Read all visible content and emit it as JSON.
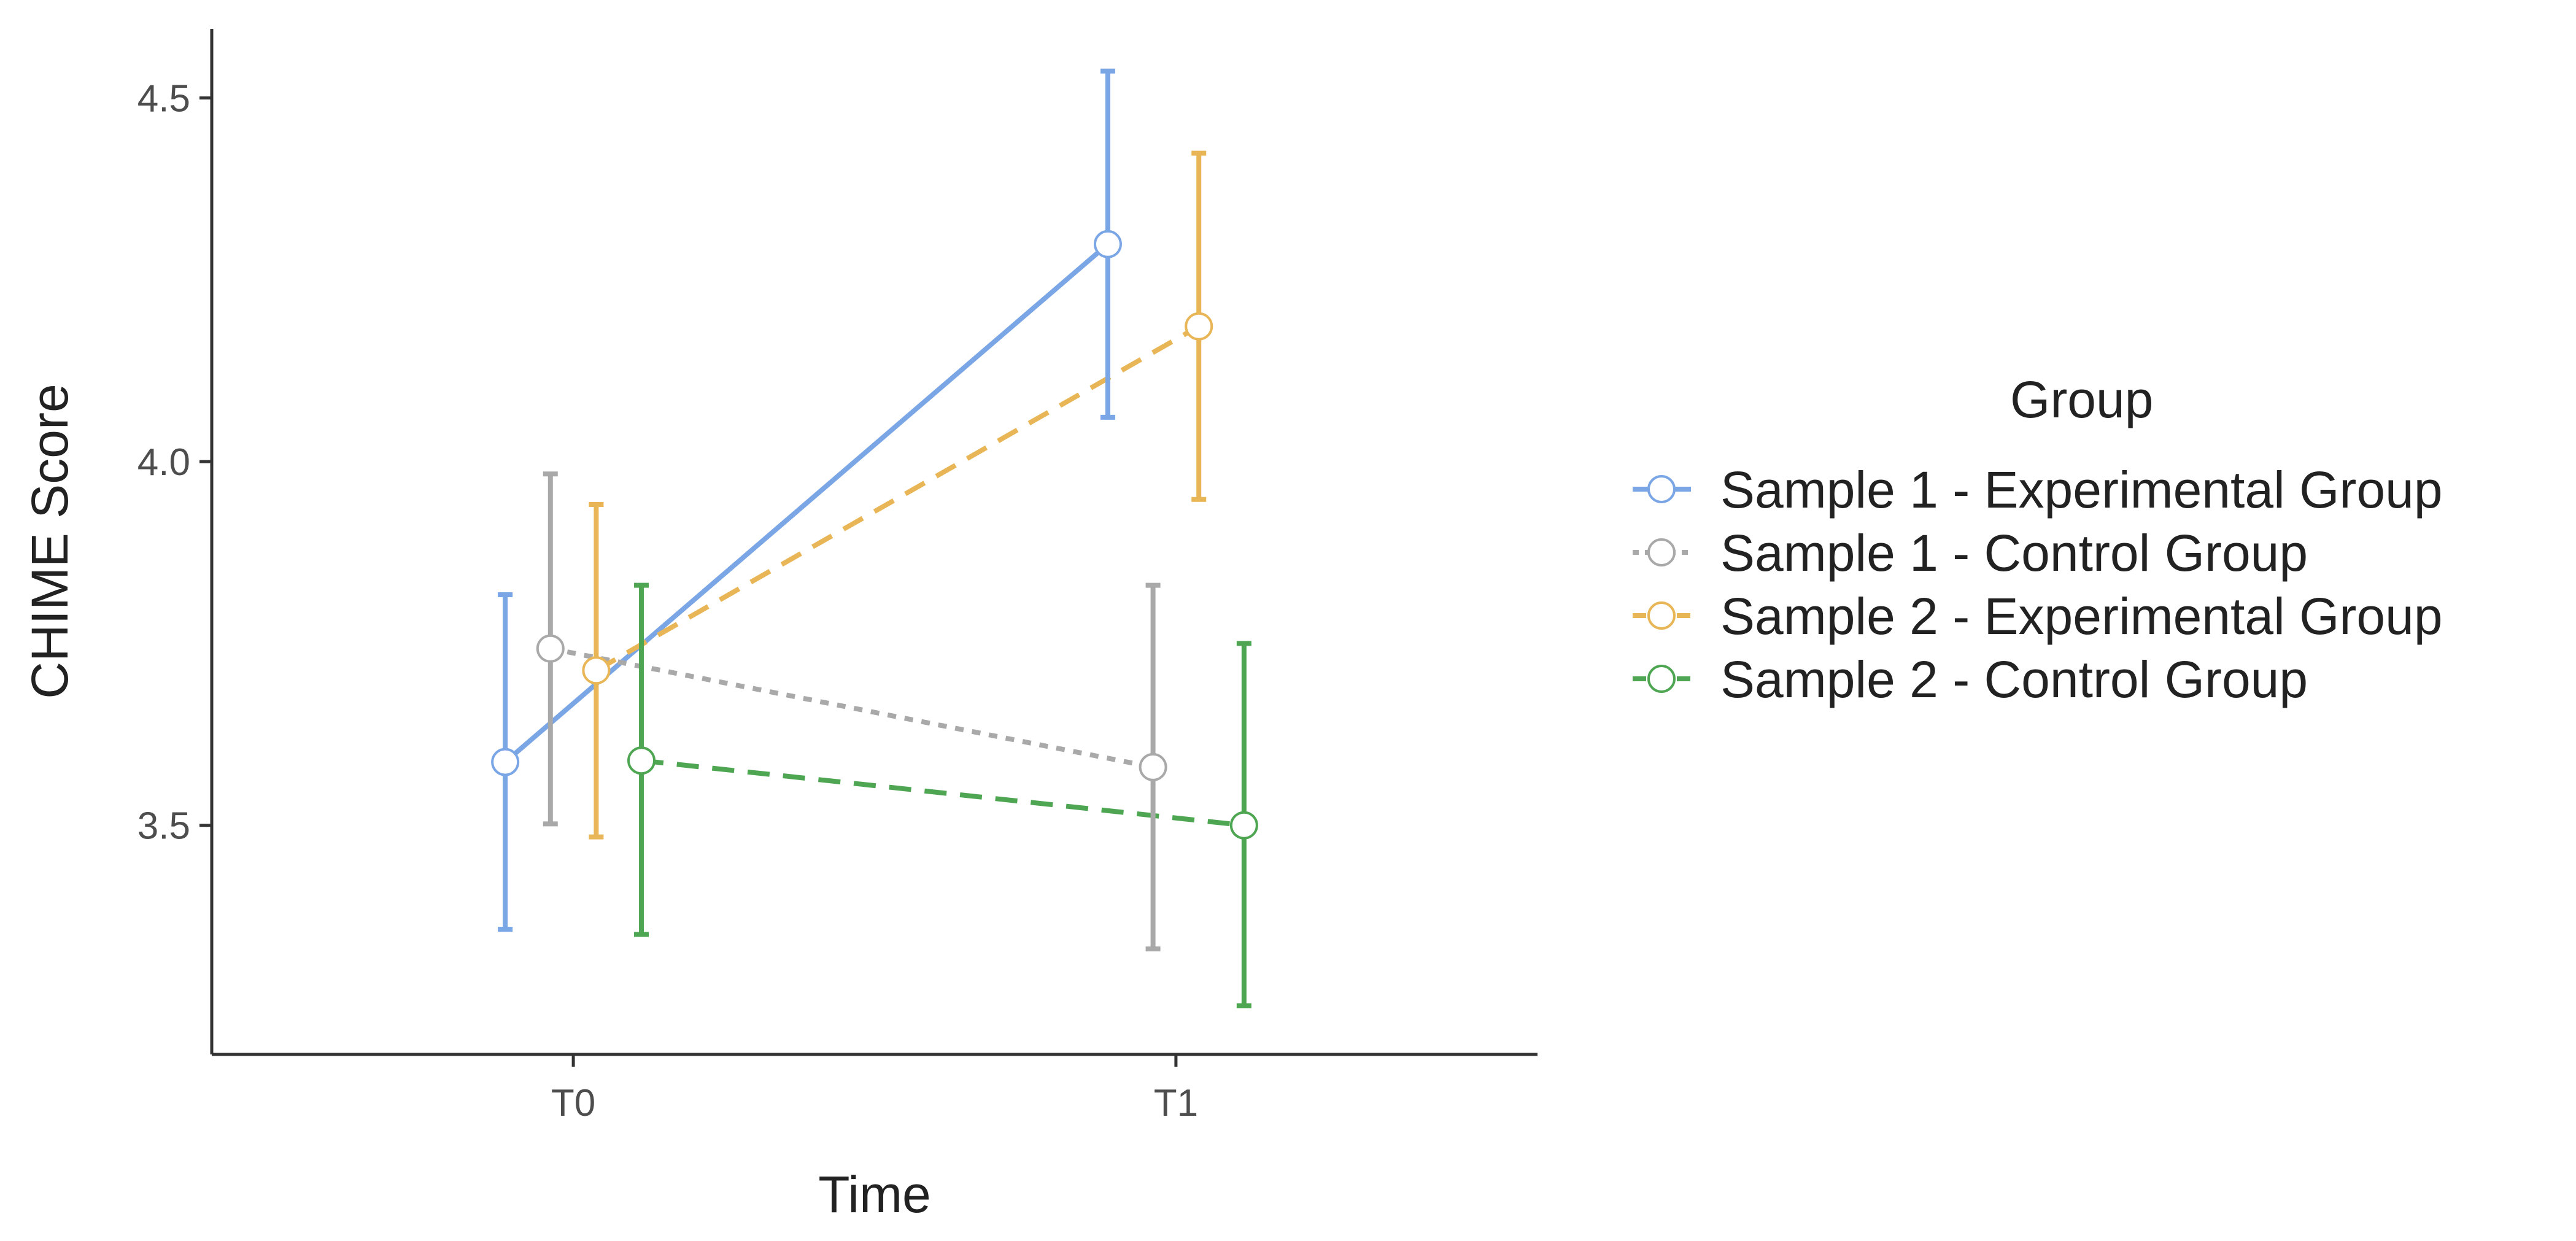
{
  "chart_data": {
    "type": "line",
    "title": "",
    "xlabel": "Time",
    "ylabel": "CHIME Score",
    "categories": [
      "T0",
      "T1"
    ],
    "ylim": [
      3.185,
      4.595
    ],
    "yticks": [
      3.5,
      4.0,
      4.5
    ],
    "ytick_labels": [
      "3.5",
      "4.0",
      "4.5"
    ],
    "grid": false,
    "legend": {
      "title": "Group",
      "position": "right"
    },
    "series": [
      {
        "name": "Sample 1 - Experimental Group",
        "color": "#7aa6e6",
        "dash": "solid",
        "dodge": -0.113,
        "values": [
          3.587,
          4.299
        ],
        "lower": [
          3.357,
          4.061
        ],
        "upper": [
          3.817,
          4.537
        ]
      },
      {
        "name": "Sample 1 - Control Group",
        "color": "#a9a9a9",
        "dash": "dotted",
        "dodge": -0.038,
        "values": [
          3.743,
          3.58
        ],
        "lower": [
          3.502,
          3.33
        ],
        "upper": [
          3.983,
          3.83
        ]
      },
      {
        "name": "Sample 2 - Experimental Group",
        "color": "#e8b656",
        "dash": "dashed",
        "dodge": 0.038,
        "values": [
          3.713,
          4.186
        ],
        "lower": [
          3.484,
          3.948
        ],
        "upper": [
          3.941,
          4.424
        ]
      },
      {
        "name": "Sample 2 - Control Group",
        "color": "#4ea652",
        "dash": "dashed",
        "dodge": 0.113,
        "values": [
          3.589,
          3.5
        ],
        "lower": [
          3.35,
          3.252
        ],
        "upper": [
          3.83,
          3.75
        ]
      }
    ]
  }
}
